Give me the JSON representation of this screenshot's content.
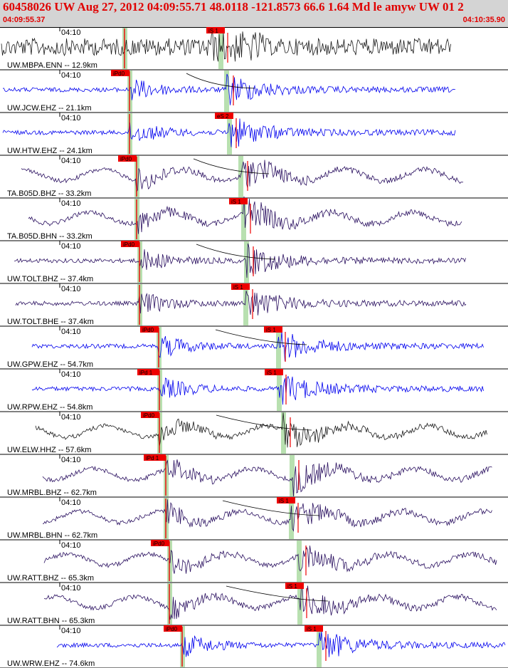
{
  "header": {
    "title": "60458026 UW Aug 27, 2012 04:09:55.71    48.0118 -121.8573 66.6 1.64 Md le amyw UW 01   2",
    "start_time": "04:09:55.37",
    "end_time": "04:10:35.90"
  },
  "tick_label": "04:10",
  "colors": {
    "header_bg": "#d4d4d4",
    "header_text": "#e00000",
    "black_trace": "#1a1a1a",
    "blue_trace": "#0000ee",
    "purple_trace": "#2a1060",
    "pick_box": "#ee0000",
    "pick_line": "#ee0000",
    "p_window": "#b8e0b0"
  },
  "traces": [
    {
      "label": "UW.MBPA.ENN -- 12.9km",
      "color": "black",
      "p_pick": "",
      "s_pick": "iS 1",
      "p_t": 175,
      "s_t": 310
    },
    {
      "label": "UW.JCW.EHZ -- 21.1km",
      "color": "blue",
      "p_pick": "iPd0",
      "s_pick": "",
      "p_t": 182,
      "s_t": 318
    },
    {
      "label": "UW.HTW.EHZ -- 24.1km",
      "color": "blue",
      "p_pick": "",
      "s_pick": "eS 2",
      "p_t": 182,
      "s_t": 322
    },
    {
      "label": "TA.B05D.BHZ -- 33.2km",
      "color": "purple",
      "p_pick": "iPd0",
      "s_pick": "",
      "p_t": 192,
      "s_t": 338
    },
    {
      "label": "TA.B05D.BHN -- 33.2km",
      "color": "purple",
      "p_pick": "",
      "s_pick": "iS 1",
      "p_t": 192,
      "s_t": 342
    },
    {
      "label": "UW.TOLT.BHZ -- 37.4km",
      "color": "purple",
      "p_pick": "iPd0",
      "s_pick": "",
      "p_t": 196,
      "s_t": 346
    },
    {
      "label": "UW.TOLT.BHE -- 37.4km",
      "color": "purple",
      "p_pick": "",
      "s_pick": "iS 1",
      "p_t": 196,
      "s_t": 345
    },
    {
      "label": "UW.GPW.EHZ -- 54.7km",
      "color": "blue",
      "p_pick": "iPd0",
      "s_pick": "iS 1",
      "p_t": 223,
      "s_t": 391
    },
    {
      "label": "UW.RPW.EHZ -- 54.8km",
      "color": "blue",
      "p_pick": "iPd 1",
      "s_pick": "iS 1",
      "p_t": 224,
      "s_t": 392
    },
    {
      "label": "UW.ELW.HHZ -- 57.6km",
      "color": "black",
      "p_pick": "iPd0",
      "s_pick": "",
      "p_t": 224,
      "s_t": 398
    },
    {
      "label": "UW.MRBL.BHZ -- 62.7km",
      "color": "purple",
      "p_pick": "iPd 1",
      "s_pick": "",
      "p_t": 233,
      "s_t": 410
    },
    {
      "label": "UW.MRBL.BHN -- 62.7km",
      "color": "purple",
      "p_pick": "",
      "s_pick": "iS 1",
      "p_t": 233,
      "s_t": 409
    },
    {
      "label": "UW.RATT.BHZ -- 65.3km",
      "color": "purple",
      "p_pick": "iPd0",
      "s_pick": "",
      "p_t": 238,
      "s_t": 420
    },
    {
      "label": "UW.RATT.BHN -- 65.3km",
      "color": "purple",
      "p_pick": "",
      "s_pick": "iS 1",
      "p_t": 238,
      "s_t": 421
    },
    {
      "label": "UW.WRW.EHZ -- 74.6km",
      "color": "blue",
      "p_pick": "iPd0",
      "s_pick": "iS 1",
      "p_t": 256,
      "s_t": 448
    }
  ]
}
